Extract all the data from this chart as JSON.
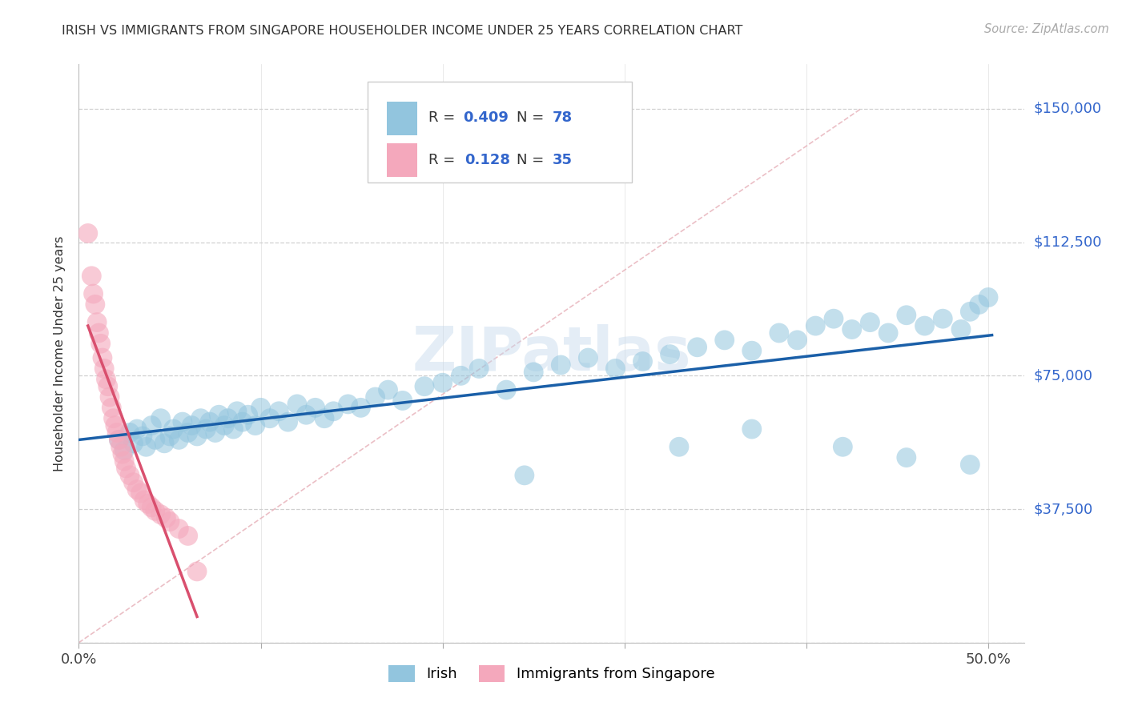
{
  "title": "IRISH VS IMMIGRANTS FROM SINGAPORE HOUSEHOLDER INCOME UNDER 25 YEARS CORRELATION CHART",
  "source": "Source: ZipAtlas.com",
  "ylabel": "Householder Income Under 25 years",
  "xlim": [
    0.0,
    0.52
  ],
  "ylim": [
    0,
    162500
  ],
  "ytick_vals": [
    0,
    37500,
    75000,
    112500,
    150000
  ],
  "ytick_labels_right": [
    "",
    "$37,500",
    "$75,000",
    "$112,500",
    "$150,000"
  ],
  "xtick_vals": [
    0.0,
    0.1,
    0.2,
    0.3,
    0.4,
    0.5
  ],
  "xtick_labels": [
    "0.0%",
    "",
    "",
    "",
    "",
    "50.0%"
  ],
  "blue_R": 0.409,
  "blue_N": 78,
  "pink_R": 0.128,
  "pink_N": 35,
  "blue_color": "#92c5de",
  "pink_color": "#f4a8bc",
  "blue_line_color": "#1a5fa8",
  "pink_line_color": "#d94f6e",
  "diag_color": "#e8b4bc",
  "watermark": "ZIPatlas",
  "blue_x": [
    0.022,
    0.025,
    0.028,
    0.03,
    0.032,
    0.035,
    0.037,
    0.04,
    0.042,
    0.045,
    0.047,
    0.05,
    0.052,
    0.055,
    0.057,
    0.06,
    0.062,
    0.065,
    0.067,
    0.07,
    0.072,
    0.075,
    0.077,
    0.08,
    0.082,
    0.085,
    0.087,
    0.09,
    0.093,
    0.097,
    0.1,
    0.105,
    0.11,
    0.115,
    0.12,
    0.125,
    0.13,
    0.135,
    0.14,
    0.148,
    0.155,
    0.163,
    0.17,
    0.178,
    0.19,
    0.2,
    0.21,
    0.22,
    0.235,
    0.25,
    0.265,
    0.28,
    0.295,
    0.31,
    0.325,
    0.34,
    0.355,
    0.37,
    0.385,
    0.395,
    0.405,
    0.415,
    0.425,
    0.435,
    0.445,
    0.455,
    0.465,
    0.475,
    0.485,
    0.49,
    0.495,
    0.5,
    0.245,
    0.33,
    0.37,
    0.42,
    0.455,
    0.49
  ],
  "blue_y": [
    57000,
    54000,
    59000,
    56000,
    60000,
    58000,
    55000,
    61000,
    57000,
    63000,
    56000,
    58000,
    60000,
    57000,
    62000,
    59000,
    61000,
    58000,
    63000,
    60000,
    62000,
    59000,
    64000,
    61000,
    63000,
    60000,
    65000,
    62000,
    64000,
    61000,
    66000,
    63000,
    65000,
    62000,
    67000,
    64000,
    66000,
    63000,
    65000,
    67000,
    66000,
    69000,
    71000,
    68000,
    72000,
    73000,
    75000,
    77000,
    71000,
    76000,
    78000,
    80000,
    77000,
    79000,
    81000,
    83000,
    85000,
    82000,
    87000,
    85000,
    89000,
    91000,
    88000,
    90000,
    87000,
    92000,
    89000,
    91000,
    88000,
    93000,
    95000,
    97000,
    47000,
    55000,
    60000,
    55000,
    52000,
    50000
  ],
  "pink_x": [
    0.005,
    0.007,
    0.008,
    0.009,
    0.01,
    0.011,
    0.012,
    0.013,
    0.014,
    0.015,
    0.016,
    0.017,
    0.018,
    0.019,
    0.02,
    0.021,
    0.022,
    0.023,
    0.024,
    0.025,
    0.026,
    0.028,
    0.03,
    0.032,
    0.034,
    0.036,
    0.038,
    0.04,
    0.042,
    0.045,
    0.048,
    0.05,
    0.055,
    0.06,
    0.065
  ],
  "pink_y": [
    115000,
    103000,
    98000,
    95000,
    90000,
    87000,
    84000,
    80000,
    77000,
    74000,
    72000,
    69000,
    66000,
    63000,
    61000,
    59000,
    57000,
    55000,
    53000,
    51000,
    49000,
    47000,
    45000,
    43000,
    42000,
    40000,
    39000,
    38000,
    37000,
    36000,
    35000,
    34000,
    32000,
    30000,
    20000
  ]
}
